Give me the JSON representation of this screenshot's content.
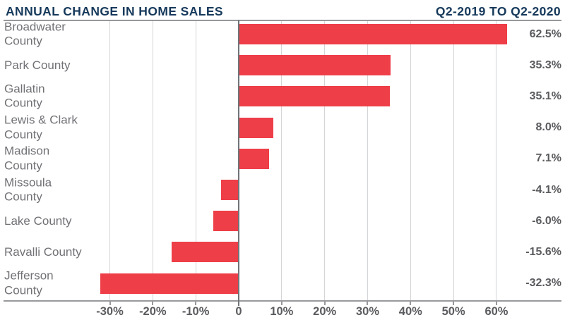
{
  "colors": {
    "bar": "#ee3e48",
    "title": "#16395b",
    "label": "#707175",
    "value": "#5a5b5e",
    "grid": "#d4d5d7",
    "axis": "#97999c",
    "zero_line": "#707478"
  },
  "chart_data": {
    "type": "bar",
    "orientation": "horizontal",
    "title": "ANNUAL CHANGE IN HOME SALES",
    "subtitle": "Q2-2019 TO Q2-2020",
    "categories": [
      "Broadwater County",
      "Park County",
      "Gallatin County",
      "Lewis & Clark County",
      "Madison County",
      "Missoula County",
      "Lake County",
      "Ravalli County",
      "Jefferson County"
    ],
    "category_lines": [
      [
        "Broadwater",
        "County"
      ],
      [
        "Park County"
      ],
      [
        "Gallatin",
        "County"
      ],
      [
        "Lewis & Clark",
        "County"
      ],
      [
        "Madison",
        "County"
      ],
      [
        "Missoula",
        "County"
      ],
      [
        "Lake County"
      ],
      [
        "Ravalli County"
      ],
      [
        "Jefferson",
        "County"
      ]
    ],
    "values": [
      62.5,
      35.3,
      35.1,
      8.0,
      7.1,
      -4.1,
      -6.0,
      -15.6,
      -32.3
    ],
    "value_labels": [
      "62.5%",
      "35.3%",
      "35.1%",
      "8.0%",
      "7.1%",
      "-4.1%",
      "-6.0%",
      "-15.6%",
      "-32.3%"
    ],
    "unit": "%",
    "x_ticks": [
      -30,
      -20,
      -10,
      0,
      10,
      20,
      30,
      40,
      50,
      60
    ],
    "x_tick_labels": [
      "-30%",
      "-20%",
      "-10%",
      "0",
      "10%",
      "20%",
      "30%",
      "40%",
      "50%",
      "60%"
    ],
    "xlim": [
      -30,
      60
    ],
    "grid": true,
    "legend": false,
    "xlabel": "",
    "ylabel": ""
  }
}
